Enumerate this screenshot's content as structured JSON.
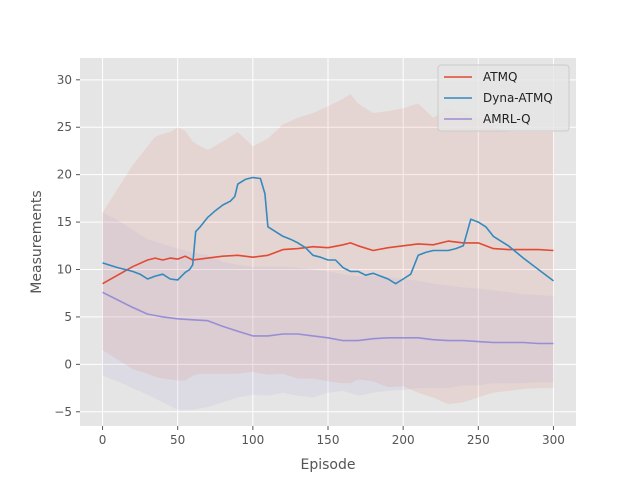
{
  "chart_data": {
    "type": "line",
    "title": "",
    "xlabel": "Episode",
    "ylabel": "Measurements",
    "xlim": [
      -15,
      315
    ],
    "ylim": [
      -6.5,
      32.3
    ],
    "xticks": [
      0,
      50,
      100,
      150,
      200,
      250,
      300
    ],
    "yticks": [
      -5,
      0,
      5,
      10,
      15,
      20,
      25,
      30
    ],
    "grid": true,
    "legend_position": "top-right",
    "series": [
      {
        "name": "ATMQ",
        "color": "#e24a33",
        "x": [
          0,
          10,
          20,
          30,
          35,
          40,
          45,
          50,
          55,
          60,
          65,
          70,
          80,
          90,
          100,
          110,
          120,
          130,
          140,
          150,
          160,
          165,
          170,
          180,
          190,
          200,
          210,
          220,
          230,
          240,
          250,
          255,
          260,
          270,
          280,
          290,
          300
        ],
        "y": [
          8.5,
          9.4,
          10.3,
          11.0,
          11.2,
          11.0,
          11.2,
          11.1,
          11.4,
          11.0,
          11.1,
          11.2,
          11.4,
          11.5,
          11.3,
          11.5,
          12.1,
          12.2,
          12.4,
          12.3,
          12.6,
          12.8,
          12.5,
          12.0,
          12.3,
          12.5,
          12.7,
          12.6,
          13.0,
          12.8,
          12.8,
          12.5,
          12.2,
          12.1,
          12.1,
          12.1,
          12.0
        ],
        "band_upper": [
          16.0,
          18.5,
          21.0,
          23.0,
          24.0,
          24.3,
          24.5,
          25.0,
          24.6,
          23.5,
          23.0,
          22.6,
          23.5,
          24.5,
          23.0,
          23.8,
          25.3,
          26.0,
          26.5,
          27.2,
          28.0,
          28.5,
          27.5,
          26.5,
          26.7,
          27.0,
          27.5,
          26.0,
          27.0,
          26.5,
          26.0,
          25.5,
          25.0,
          24.5,
          24.5,
          24.5,
          24.5
        ],
        "band_lower": [
          1.5,
          0.5,
          -0.5,
          -1.0,
          -1.3,
          -1.5,
          -1.6,
          -1.7,
          -1.7,
          -1.2,
          -1.0,
          -1.0,
          -1.0,
          -1.0,
          -0.8,
          -1.1,
          -1.0,
          -1.5,
          -1.5,
          -1.8,
          -2.0,
          -2.0,
          -1.6,
          -1.8,
          -2.4,
          -2.3,
          -3.0,
          -3.5,
          -4.2,
          -4.0,
          -3.5,
          -3.2,
          -3.0,
          -2.8,
          -2.6,
          -2.5,
          -2.5
        ]
      },
      {
        "name": "Dyna-ATMQ",
        "color": "#348abd",
        "x": [
          0,
          10,
          20,
          25,
          30,
          35,
          40,
          45,
          50,
          55,
          58,
          60,
          62,
          65,
          70,
          75,
          80,
          85,
          88,
          90,
          95,
          100,
          105,
          108,
          110,
          115,
          120,
          125,
          130,
          135,
          140,
          145,
          150,
          155,
          160,
          165,
          170,
          175,
          180,
          185,
          190,
          195,
          200,
          205,
          210,
          215,
          220,
          225,
          230,
          235,
          240,
          245,
          250,
          255,
          260,
          265,
          270,
          280,
          290,
          300
        ],
        "y": [
          10.7,
          10.2,
          9.8,
          9.5,
          9.0,
          9.3,
          9.5,
          9.0,
          8.9,
          9.7,
          10.0,
          10.5,
          14.0,
          14.5,
          15.5,
          16.2,
          16.8,
          17.2,
          17.7,
          19.0,
          19.5,
          19.7,
          19.6,
          18.0,
          14.5,
          14.0,
          13.5,
          13.2,
          12.8,
          12.3,
          11.5,
          11.3,
          11.0,
          11.0,
          10.2,
          9.8,
          9.8,
          9.4,
          9.6,
          9.3,
          9.0,
          8.5,
          9.0,
          9.5,
          11.5,
          11.8,
          12.0,
          12.0,
          12.0,
          12.2,
          12.5,
          15.3,
          15.0,
          14.5,
          13.5,
          13.0,
          12.5,
          11.2,
          10.0,
          8.8
        ]
      },
      {
        "name": "AMRL-Q",
        "color": "#988ed5",
        "x": [
          0,
          10,
          20,
          30,
          40,
          50,
          60,
          70,
          80,
          90,
          100,
          110,
          120,
          130,
          140,
          150,
          160,
          170,
          180,
          190,
          200,
          210,
          220,
          230,
          240,
          250,
          260,
          270,
          280,
          290,
          300
        ],
        "y": [
          7.6,
          6.8,
          6.0,
          5.3,
          5.0,
          4.8,
          4.7,
          4.6,
          4.0,
          3.5,
          3.0,
          3.0,
          3.2,
          3.2,
          3.0,
          2.8,
          2.5,
          2.5,
          2.7,
          2.8,
          2.8,
          2.8,
          2.6,
          2.5,
          2.5,
          2.4,
          2.3,
          2.3,
          2.3,
          2.2,
          2.2
        ],
        "band_upper": [
          16.0,
          15.2,
          14.2,
          13.2,
          12.7,
          12.2,
          11.8,
          11.5,
          10.8,
          10.5,
          10.3,
          10.3,
          10.3,
          10.2,
          10.0,
          9.8,
          9.5,
          9.3,
          9.3,
          9.2,
          9.0,
          8.8,
          8.5,
          8.3,
          8.1,
          8.0,
          7.8,
          7.6,
          7.4,
          7.3,
          7.2
        ],
        "band_lower": [
          -1.2,
          -1.8,
          -2.5,
          -3.2,
          -4.0,
          -4.8,
          -4.8,
          -4.5,
          -4.0,
          -3.5,
          -3.2,
          -3.3,
          -3.0,
          -3.3,
          -3.5,
          -3.0,
          -2.8,
          -3.3,
          -3.0,
          -2.8,
          -2.7,
          -2.5,
          -2.5,
          -2.5,
          -2.2,
          -2.2,
          -2.0,
          -2.0,
          -2.0,
          -1.9,
          -1.9
        ]
      }
    ]
  }
}
